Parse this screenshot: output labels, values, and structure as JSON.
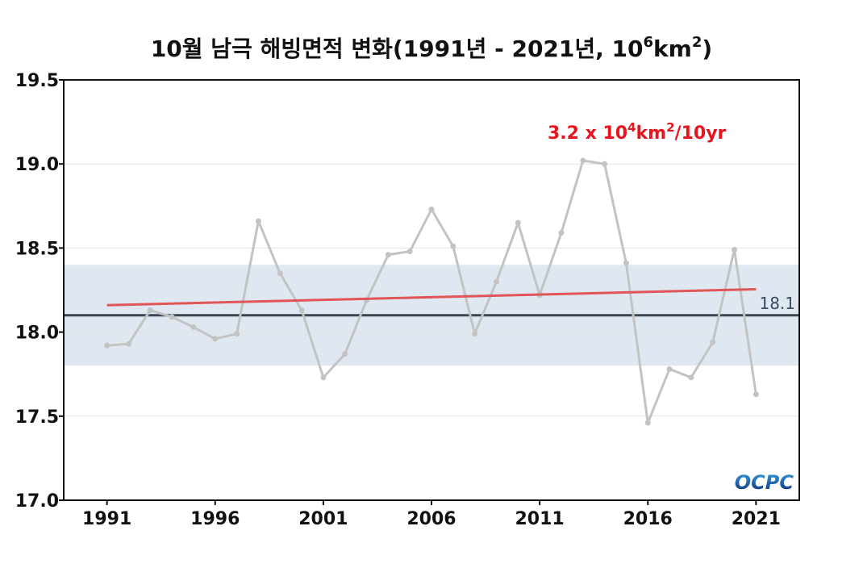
{
  "chart_data": {
    "type": "line",
    "title": "10월 남극 해빙면적 변화(1991년 - 2021년, 10⁶km²)",
    "title_parts": {
      "main": "10월 남극 해빙면적 변화(1991년 - 2021년, 10",
      "exp1": "6",
      "mid": "km",
      "exp2": "2",
      "end": ")"
    },
    "xlabel": "",
    "ylabel": "",
    "xlim": [
      1989,
      2023
    ],
    "ylim": [
      17.0,
      19.5
    ],
    "x_ticks": [
      1991,
      1996,
      2001,
      2006,
      2011,
      2016,
      2021
    ],
    "y_ticks": [
      17.0,
      17.5,
      18.0,
      18.5,
      19.0,
      19.5
    ],
    "y_tick_labels": [
      "17.0",
      "17.5",
      "18.0",
      "18.5",
      "19.0",
      "19.5"
    ],
    "grid": true,
    "series": [
      {
        "x": [
          1991,
          1992,
          1993,
          1994,
          1995,
          1996,
          1997,
          1998,
          1999,
          2000,
          2001,
          2002,
          2003,
          2004,
          2005,
          2006,
          2007,
          2008,
          2009,
          2010,
          2011,
          2012,
          2013,
          2014,
          2015,
          2016,
          2017,
          2018,
          2019,
          2020,
          2021
        ],
        "values": [
          17.92,
          17.93,
          18.13,
          18.09,
          18.03,
          17.96,
          17.99,
          18.66,
          18.35,
          18.13,
          17.73,
          17.87,
          18.19,
          18.46,
          18.48,
          18.73,
          18.51,
          17.99,
          18.3,
          18.65,
          18.22,
          18.59,
          19.02,
          19.0,
          18.41,
          17.46,
          17.78,
          17.73,
          17.94,
          18.49,
          17.63
        ],
        "color": "#c3c3c3"
      }
    ],
    "mean": {
      "value": 18.1,
      "label": "18.1",
      "color": "#3b4652"
    },
    "band": {
      "low": 17.8,
      "high": 18.4,
      "color": "#dfe8f0"
    },
    "trend": {
      "start": {
        "x": 1991,
        "y": 18.16
      },
      "end": {
        "x": 2021,
        "y": 18.255
      },
      "color": "#e05558",
      "label_parts": {
        "a": "3.2 x 10",
        "exp1": "4",
        "b": "km",
        "exp2": "2",
        "c": "/10yr"
      }
    },
    "logo": {
      "text": "OCPC"
    }
  }
}
